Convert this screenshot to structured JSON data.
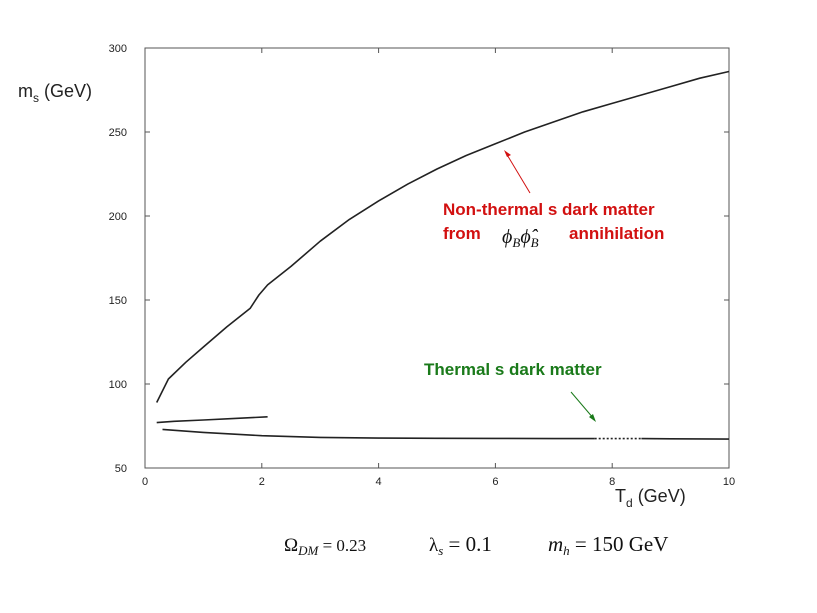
{
  "chart_data": {
    "type": "line",
    "xlabel": "Td (GeV)",
    "xlabel_main": "T",
    "xlabel_sub": "d",
    "xlabel_unit": " (GeV)",
    "ylabel": "ms (GeV)",
    "ylabel_main": "m",
    "ylabel_sub": "s",
    "ylabel_unit": " (GeV)",
    "xlim": [
      0,
      10
    ],
    "ylim": [
      50,
      300
    ],
    "xticks": [
      0,
      2,
      4,
      6,
      8,
      10
    ],
    "yticks": [
      50,
      100,
      150,
      200,
      250,
      300
    ],
    "grid": false,
    "series": [
      {
        "x": [
          0.2,
          0.4,
          0.7,
          1.0,
          1.4,
          1.8,
          1.95,
          2.1,
          2.5,
          3.0,
          3.5,
          4.0,
          4.5,
          5.0,
          5.5,
          6.0,
          6.5,
          7.0,
          7.5,
          8.0,
          8.5,
          9.0,
          9.5,
          10.0
        ],
        "y": [
          89,
          103,
          113,
          122,
          134,
          145,
          153,
          159,
          170,
          185,
          198,
          209,
          219,
          228,
          236,
          243,
          250,
          256,
          262,
          267,
          272,
          277,
          282,
          286
        ]
      },
      {
        "x": [
          0.2,
          0.5,
          1.0,
          1.5,
          2.1
        ],
        "y": [
          77,
          77.8,
          78.6,
          79.4,
          80.5
        ]
      },
      {
        "x": [
          0.3,
          1.0,
          2.0,
          3.0,
          4.0,
          5.0,
          6.0,
          7.0,
          7.7
        ],
        "y": [
          73,
          71.2,
          69.2,
          68.2,
          67.8,
          67.7,
          67.6,
          67.5,
          67.5
        ]
      },
      {
        "x": [
          7.7,
          8.5
        ],
        "y": [
          67.5,
          67.5
        ],
        "dashed": true
      },
      {
        "x": [
          8.5,
          9.0,
          10.0
        ],
        "y": [
          67.5,
          67.4,
          67.2
        ]
      }
    ],
    "annotations": {
      "nonthermal_line1": "Non-thermal s dark matter",
      "nonthermal_line2_from": "from",
      "nonthermal_line2_phi": "ϕ",
      "nonthermal_line2_sub": "B",
      "nonthermal_line2_phi_hat": "ϕ̂",
      "nonthermal_line2_end": "annihilation",
      "thermal": "Thermal s dark matter",
      "arrow_red_color": "#d21010",
      "arrow_green_color": "#1a7a1a"
    },
    "caption": {
      "omega": "Ω",
      "omega_sub": "DM",
      "omega_val": " = 0.23",
      "lambda": "λ",
      "lambda_sub": "s",
      "lambda_val": " = 0.1",
      "mh": "m",
      "mh_sub": "h",
      "mh_val": " = 150 GeV"
    }
  }
}
